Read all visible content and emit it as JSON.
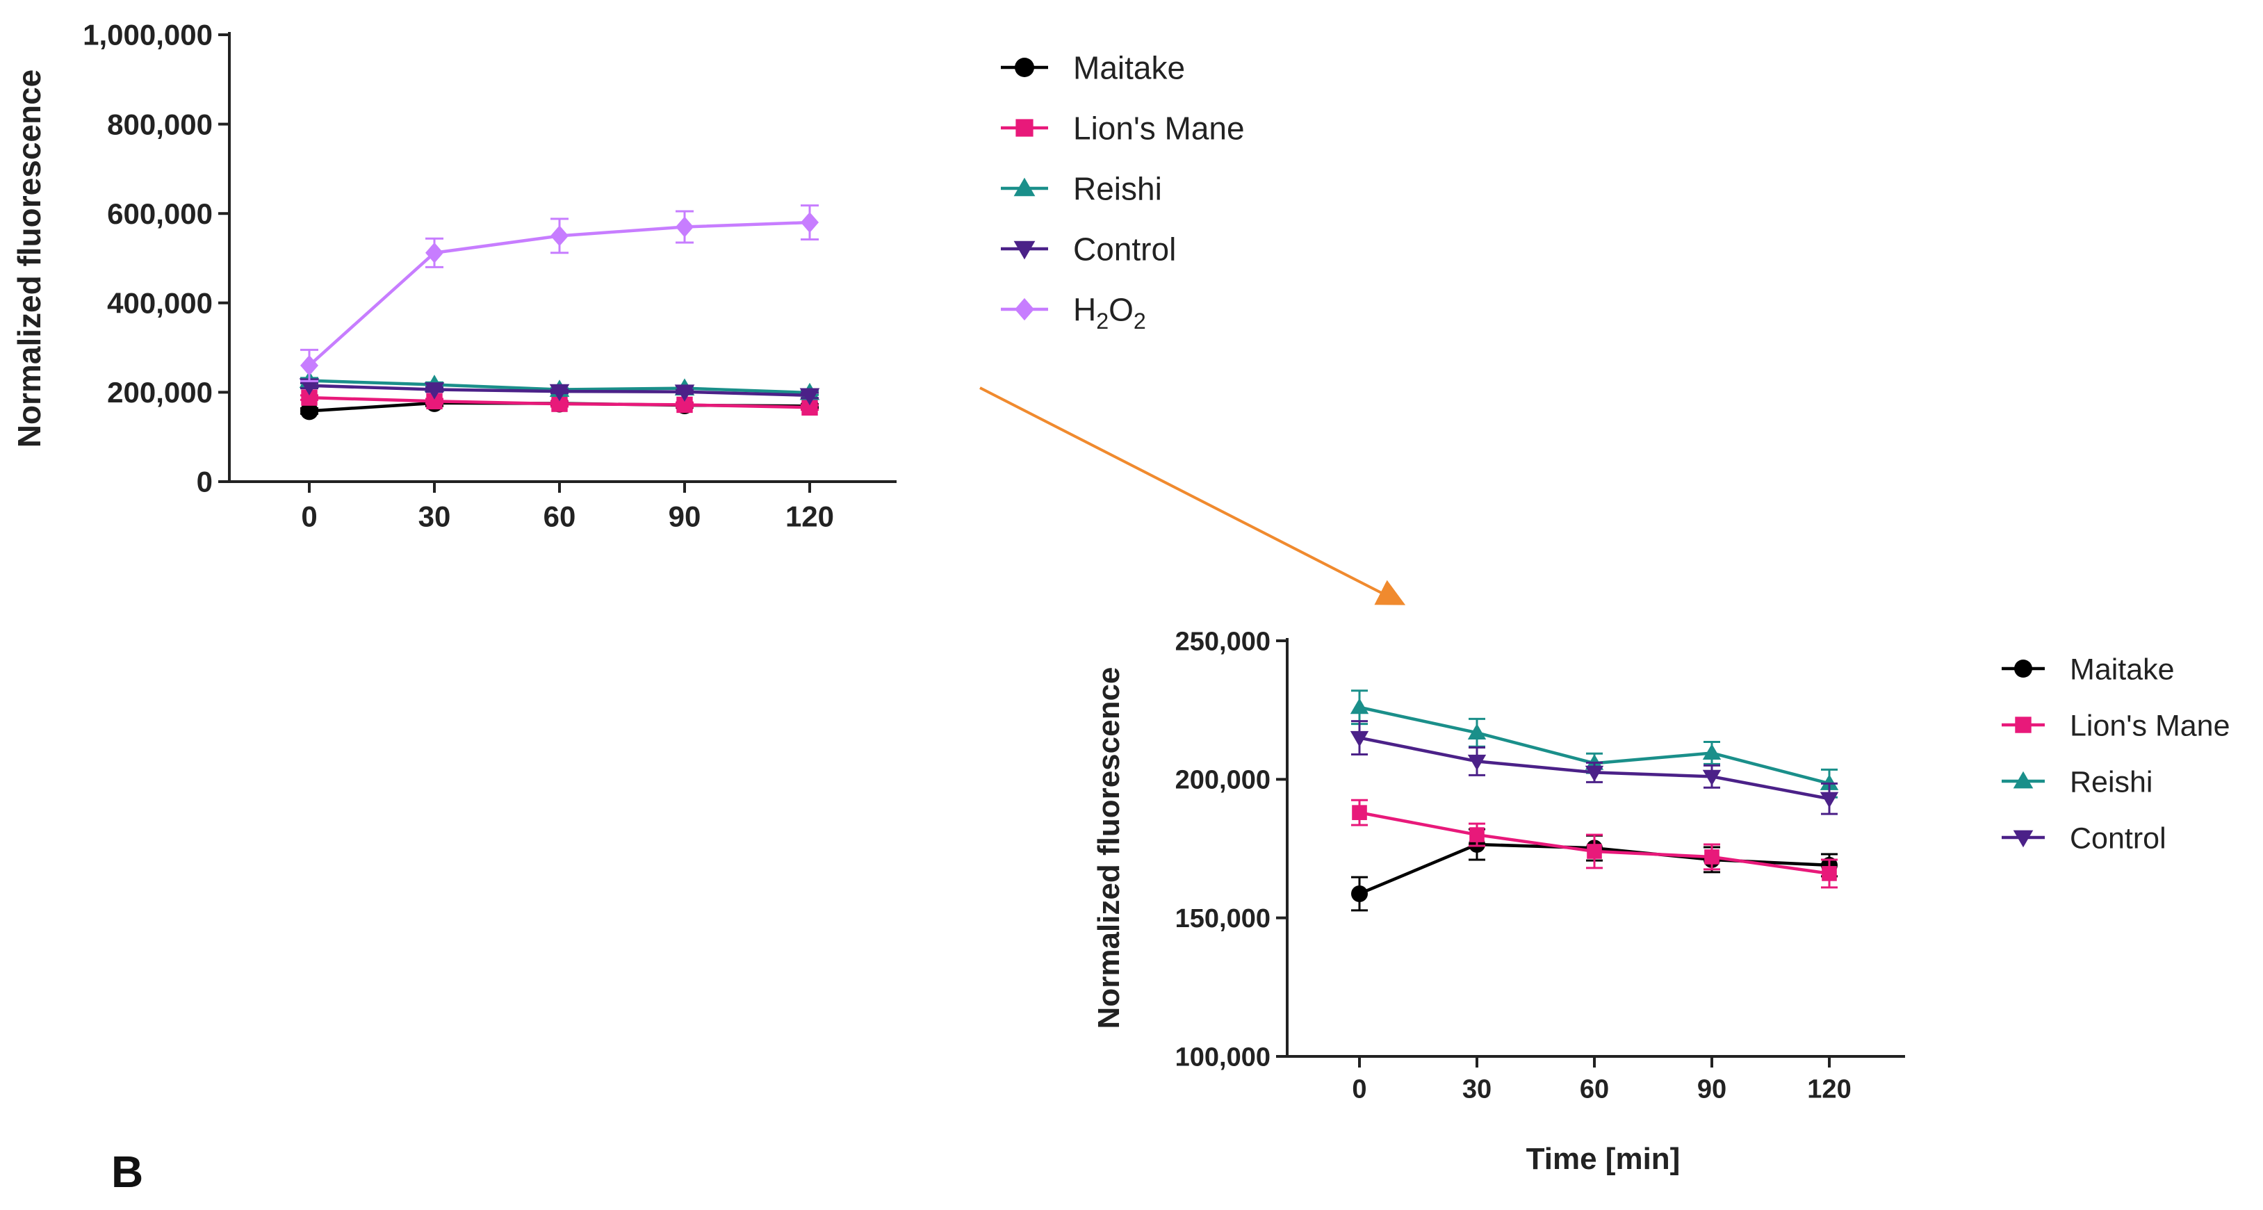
{
  "panel_label": "B",
  "chart_data": [
    {
      "id": "overview",
      "type": "line",
      "title": "",
      "xlabel": "",
      "ylabel": "Normalized fluorescence",
      "x": [
        0,
        30,
        60,
        90,
        120
      ],
      "x_tick_labels": [
        "0",
        "30",
        "60",
        "90",
        "120"
      ],
      "ylim": [
        0,
        1000000
      ],
      "y_ticks": [
        0,
        200000,
        400000,
        600000,
        800000,
        1000000
      ],
      "y_tick_labels": [
        "0",
        "200,000",
        "400,000",
        "600,000",
        "800,000",
        "1,000,000"
      ],
      "legend_position": "right",
      "series": [
        {
          "name": "Maitake",
          "color": "#000000",
          "marker": "circle",
          "values": [
            158000,
            176000,
            175000,
            171000,
            169000
          ],
          "errors": [
            6000,
            7000,
            5000,
            5000,
            4000
          ]
        },
        {
          "name": "Lion's Mane",
          "color": "#e8197a",
          "marker": "square",
          "values": [
            188000,
            180000,
            174000,
            172000,
            166000
          ],
          "errors": [
            5000,
            5000,
            6000,
            5000,
            5000
          ]
        },
        {
          "name": "Reishi",
          "color": "#1a8f8a",
          "marker": "triangle-up",
          "values": [
            226000,
            217000,
            206000,
            209000,
            199000
          ],
          "errors": [
            6000,
            5000,
            3000,
            4000,
            5000
          ]
        },
        {
          "name": "Control",
          "color": "#4b2188",
          "marker": "triangle-down",
          "values": [
            215000,
            206000,
            202000,
            201000,
            193000
          ],
          "errors": [
            6000,
            5000,
            4000,
            4000,
            6000
          ]
        },
        {
          "name": "H2O2",
          "display_name": {
            "base": "H",
            "sub1": "2",
            "mid": "O",
            "sub2": "2"
          },
          "color": "#c77dff",
          "marker": "diamond",
          "values": [
            260000,
            512000,
            550000,
            570000,
            580000
          ],
          "errors": [
            35000,
            32000,
            38000,
            35000,
            38000
          ]
        }
      ]
    },
    {
      "id": "zoom",
      "type": "line",
      "title": "",
      "xlabel": "Time [min]",
      "ylabel": "Normalized fluorescence",
      "x": [
        0,
        30,
        60,
        90,
        120
      ],
      "x_tick_labels": [
        "0",
        "30",
        "60",
        "90",
        "120"
      ],
      "ylim": [
        100000,
        250000
      ],
      "y_ticks": [
        100000,
        150000,
        200000,
        250000
      ],
      "y_tick_labels": [
        "100,000",
        "150,000",
        "200,000",
        "250,000"
      ],
      "legend_position": "right",
      "series": [
        {
          "name": "Maitake",
          "color": "#000000",
          "marker": "circle",
          "values": [
            158700,
            176500,
            175200,
            171000,
            169000
          ],
          "errors": [
            6000,
            5500,
            4500,
            4500,
            4000
          ]
        },
        {
          "name": "Lion's Mane",
          "color": "#e8197a",
          "marker": "square",
          "values": [
            188000,
            180000,
            174000,
            172000,
            166000
          ],
          "errors": [
            4500,
            4000,
            6000,
            4500,
            5000
          ]
        },
        {
          "name": "Reishi",
          "color": "#1a8f8a",
          "marker": "triangle-up",
          "values": [
            226000,
            216800,
            205800,
            209500,
            198500
          ],
          "errors": [
            6000,
            5000,
            3500,
            4000,
            5000
          ]
        },
        {
          "name": "Control",
          "color": "#4b2188",
          "marker": "triangle-down",
          "values": [
            215000,
            206500,
            202500,
            201000,
            193000
          ],
          "errors": [
            6000,
            5000,
            3500,
            4000,
            5500
          ]
        }
      ]
    }
  ],
  "connector": {
    "color": "#f08a2e"
  }
}
